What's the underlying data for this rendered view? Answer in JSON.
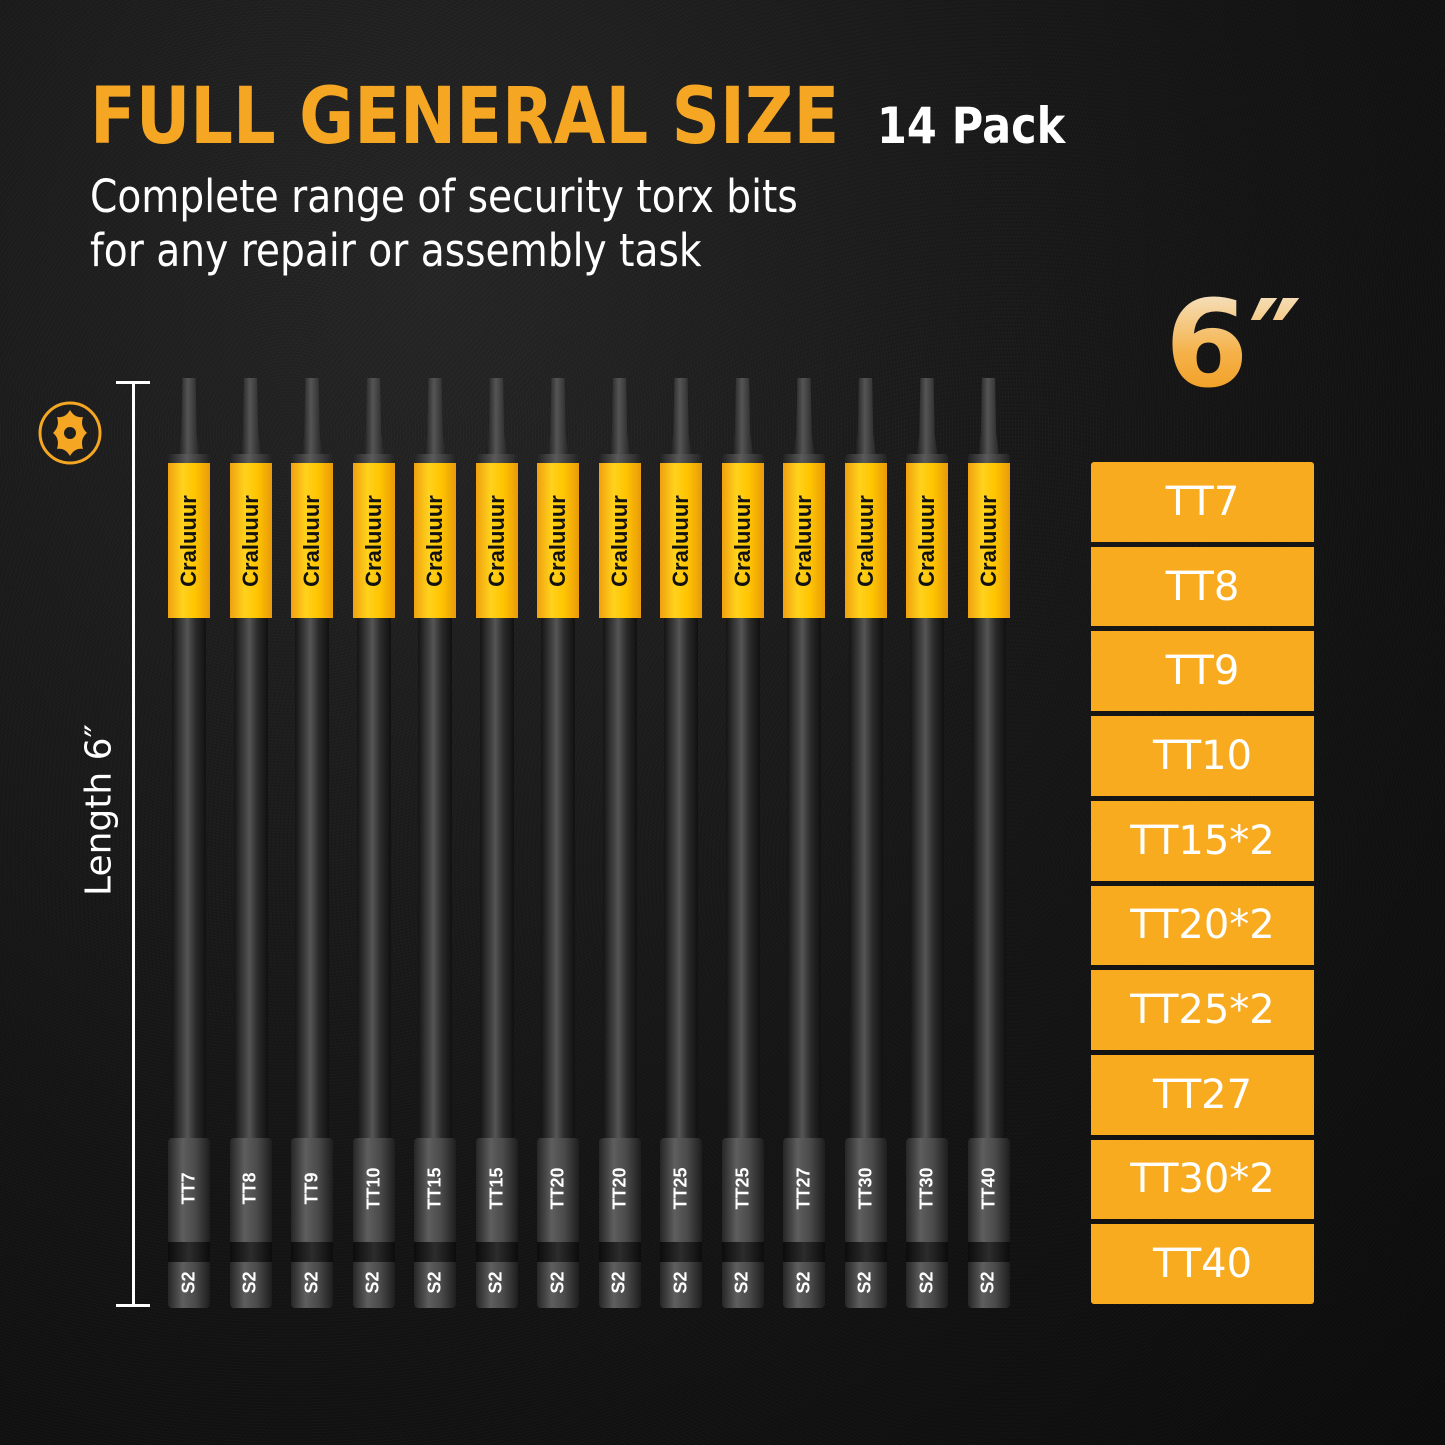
{
  "header": {
    "title": "FULL GENERAL SIZE",
    "pack_label": "14 Pack",
    "subtitle_line1": "Complete range of security torx bits",
    "subtitle_line2": "for any repair or assembly task"
  },
  "icon": {
    "name": "torx-star-icon",
    "color": "#f5a623"
  },
  "ruler": {
    "label": "Length 6″"
  },
  "length_badge": "6″",
  "colors": {
    "accent": "#f9ab20",
    "title": "#f5a623",
    "label_yellow": "#ffc400",
    "background": "#141414"
  },
  "bits": [
    {
      "brand": "Craluuur",
      "size": "TT7",
      "material": "S2"
    },
    {
      "brand": "Craluuur",
      "size": "TT8",
      "material": "S2"
    },
    {
      "brand": "Craluuur",
      "size": "TT9",
      "material": "S2"
    },
    {
      "brand": "Craluuur",
      "size": "TT10",
      "material": "S2"
    },
    {
      "brand": "Craluuur",
      "size": "TT15",
      "material": "S2"
    },
    {
      "brand": "Craluuur",
      "size": "TT15",
      "material": "S2"
    },
    {
      "brand": "Craluuur",
      "size": "TT20",
      "material": "S2"
    },
    {
      "brand": "Craluuur",
      "size": "TT20",
      "material": "S2"
    },
    {
      "brand": "Craluuur",
      "size": "TT25",
      "material": "S2"
    },
    {
      "brand": "Craluuur",
      "size": "TT25",
      "material": "S2"
    },
    {
      "brand": "Craluuur",
      "size": "TT27",
      "material": "S2"
    },
    {
      "brand": "Craluuur",
      "size": "TT30",
      "material": "S2"
    },
    {
      "brand": "Craluuur",
      "size": "TT30",
      "material": "S2"
    },
    {
      "brand": "Craluuur",
      "size": "TT40",
      "material": "S2"
    }
  ],
  "size_list": [
    "TT7",
    "TT8",
    "TT9",
    "TT10",
    "TT15*2",
    "TT20*2",
    "TT25*2",
    "TT27",
    "TT30*2",
    "TT40"
  ]
}
